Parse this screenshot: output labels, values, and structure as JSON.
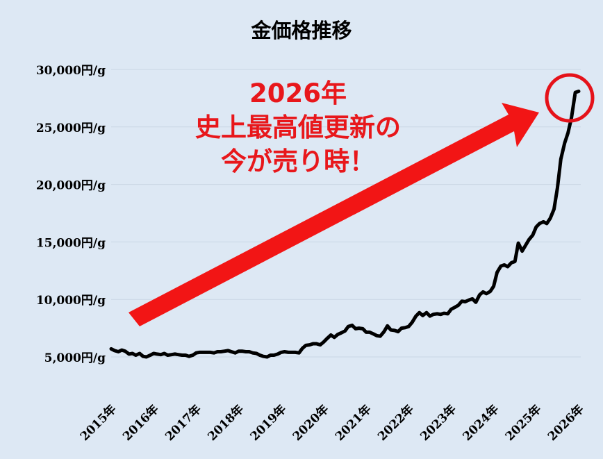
{
  "chart_data": {
    "type": "line",
    "title": "金価格推移",
    "xlabel": "",
    "ylabel": "",
    "y_ticks": [
      "30,000円/g",
      "25,000円/g",
      "20,000円/g",
      "15,000円/g",
      "10,000円/g",
      "5,000円/g"
    ],
    "y_tick_values": [
      30000,
      25000,
      20000,
      15000,
      10000,
      5000
    ],
    "ylim": [
      2500,
      32000
    ],
    "x_ticks": [
      "2015年",
      "2016年",
      "2017年",
      "2018年",
      "2019年",
      "2020年",
      "2021年",
      "2022年",
      "2023年",
      "2024年",
      "2025年",
      "2026年"
    ],
    "xlim": [
      2015,
      2026.1
    ],
    "grid": true,
    "series": [
      {
        "color": "#000000",
        "x": [
          2015.0,
          2015.08,
          2015.17,
          2015.25,
          2015.33,
          2015.42,
          2015.5,
          2015.58,
          2015.67,
          2015.75,
          2015.83,
          2015.92,
          2016.0,
          2016.08,
          2016.17,
          2016.25,
          2016.33,
          2016.42,
          2016.5,
          2016.58,
          2016.67,
          2016.75,
          2016.83,
          2016.92,
          2017.0,
          2017.08,
          2017.17,
          2017.25,
          2017.33,
          2017.42,
          2017.5,
          2017.58,
          2017.67,
          2017.75,
          2017.83,
          2017.92,
          2018.0,
          2018.08,
          2018.17,
          2018.25,
          2018.33,
          2018.42,
          2018.5,
          2018.58,
          2018.67,
          2018.75,
          2018.83,
          2018.92,
          2019.0,
          2019.08,
          2019.17,
          2019.25,
          2019.33,
          2019.42,
          2019.5,
          2019.58,
          2019.67,
          2019.75,
          2019.83,
          2019.92,
          2020.0,
          2020.08,
          2020.17,
          2020.25,
          2020.33,
          2020.42,
          2020.5,
          2020.58,
          2020.67,
          2020.75,
          2020.83,
          2020.92,
          2021.0,
          2021.08,
          2021.17,
          2021.25,
          2021.33,
          2021.42,
          2021.5,
          2021.58,
          2021.67,
          2021.75,
          2021.83,
          2021.92,
          2022.0,
          2022.08,
          2022.17,
          2022.25,
          2022.33,
          2022.42,
          2022.5,
          2022.58,
          2022.67,
          2022.75,
          2022.83,
          2022.92,
          2023.0,
          2023.08,
          2023.17,
          2023.25,
          2023.33,
          2023.42,
          2023.5,
          2023.58,
          2023.67,
          2023.75,
          2023.83,
          2023.92,
          2024.0,
          2024.08,
          2024.17,
          2024.25,
          2024.33,
          2024.42,
          2024.5,
          2024.58,
          2024.67,
          2024.75,
          2024.83,
          2024.92,
          2025.0,
          2025.08,
          2025.17,
          2025.25,
          2025.33,
          2025.42,
          2025.5,
          2025.58,
          2025.67,
          2025.75,
          2025.83,
          2025.92,
          2026.0
        ],
        "values": [
          5700,
          5550,
          5450,
          5600,
          5500,
          5250,
          5300,
          5150,
          5300,
          5050,
          5000,
          5150,
          5300,
          5250,
          5200,
          5300,
          5150,
          5200,
          5250,
          5200,
          5150,
          5150,
          5050,
          5150,
          5350,
          5400,
          5400,
          5400,
          5400,
          5350,
          5450,
          5450,
          5500,
          5550,
          5450,
          5350,
          5500,
          5500,
          5450,
          5450,
          5350,
          5300,
          5150,
          5050,
          5000,
          5150,
          5150,
          5250,
          5400,
          5450,
          5400,
          5400,
          5400,
          5350,
          5750,
          6000,
          6050,
          6150,
          6150,
          6050,
          6300,
          6600,
          6900,
          6700,
          6950,
          7100,
          7250,
          7650,
          7750,
          7450,
          7500,
          7450,
          7150,
          7150,
          7000,
          6850,
          6800,
          7200,
          7700,
          7350,
          7300,
          7200,
          7500,
          7550,
          7650,
          8000,
          8550,
          8850,
          8600,
          8850,
          8550,
          8700,
          8750,
          8700,
          8800,
          8750,
          9150,
          9300,
          9500,
          9850,
          9800,
          9950,
          10050,
          9750,
          10400,
          10650,
          10500,
          10700,
          11150,
          12350,
          12900,
          13000,
          12850,
          13200,
          13300,
          14900,
          14200,
          14700,
          15200,
          15600,
          16300,
          16600,
          16750,
          16600,
          17050,
          17850,
          19700,
          22200,
          23600,
          24500,
          25800,
          28000,
          28100
        ]
      }
    ],
    "annotation": {
      "lines": [
        "2026年",
        "史上最高値更新の",
        "今が売り時！"
      ],
      "color": "#e8171b"
    }
  }
}
